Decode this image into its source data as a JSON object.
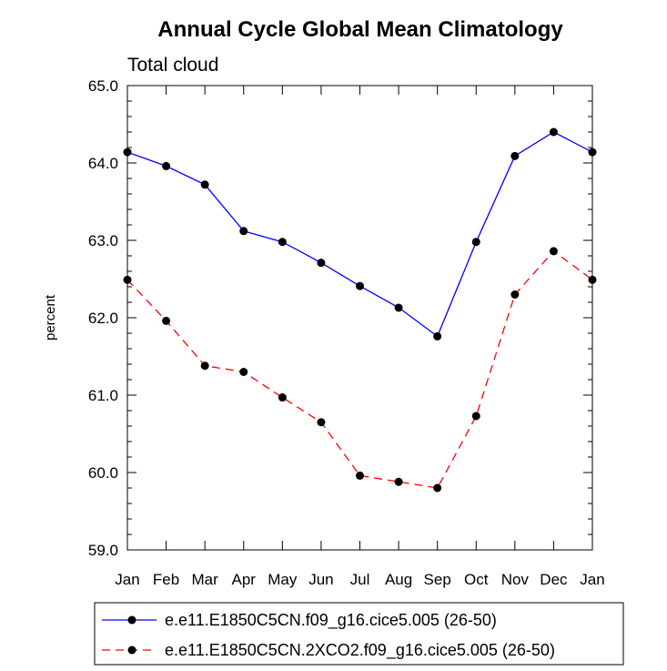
{
  "chart_data": {
    "type": "line",
    "title": "Annual Cycle Global Mean Climatology",
    "subtitle": "Total cloud",
    "xlabel": "",
    "ylabel": "percent",
    "categories": [
      "Jan",
      "Feb",
      "Mar",
      "Apr",
      "May",
      "Jun",
      "Jul",
      "Aug",
      "Sep",
      "Oct",
      "Nov",
      "Dec",
      "Jan"
    ],
    "ylim": [
      59.0,
      65.0
    ],
    "yticks": [
      59.0,
      60.0,
      61.0,
      62.0,
      63.0,
      64.0,
      65.0
    ],
    "ytick_labels": [
      "59.0",
      "60.0",
      "61.0",
      "62.0",
      "63.0",
      "64.0",
      "65.0"
    ],
    "grid": false,
    "legend_position": "bottom",
    "series": [
      {
        "name": "e.e11.E1850C5CN.f09_g16.cice5.005 (26-50)",
        "color": "#0000ff",
        "dash": "solid",
        "values": [
          64.14,
          63.96,
          63.72,
          63.12,
          62.98,
          62.71,
          62.41,
          62.13,
          61.76,
          62.98,
          64.09,
          64.4,
          64.14
        ]
      },
      {
        "name": "e.e11.E1850C5CN.2XCO2.f09_g16.cice5.005 (26-50)",
        "color": "#ff0000",
        "dash": "dashed",
        "values": [
          62.49,
          61.96,
          61.38,
          61.3,
          60.97,
          60.65,
          59.96,
          59.88,
          59.8,
          60.73,
          62.3,
          62.86,
          62.49
        ]
      }
    ]
  }
}
